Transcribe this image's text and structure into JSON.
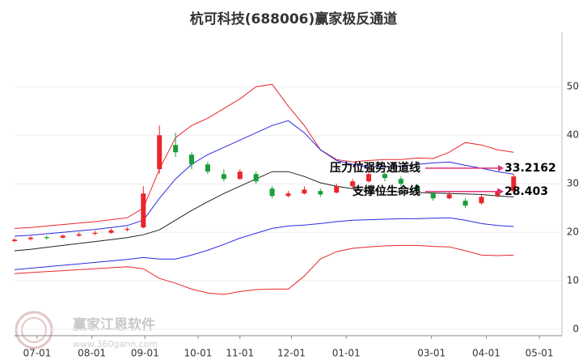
{
  "chart_data": {
    "type": "candlestick",
    "title": "杭可科技(688006)赢家极反通道",
    "watermark": "赢家江恩软件",
    "watermark_url": "www.360gann.com",
    "x": [
      0,
      10,
      20,
      30,
      40,
      50,
      60,
      70,
      80,
      90,
      100,
      110,
      120,
      130,
      140,
      150,
      160,
      170,
      180,
      190,
      200,
      210,
      220,
      230,
      240,
      250,
      260,
      270,
      280,
      290,
      300,
      310
    ],
    "xlim": [
      0,
      340
    ],
    "xticks": [
      {
        "value": 14,
        "label": "07-01"
      },
      {
        "value": 48,
        "label": "08-01"
      },
      {
        "value": 81,
        "label": "09-01"
      },
      {
        "value": 114,
        "label": "10-01"
      },
      {
        "value": 140,
        "label": "11-01"
      },
      {
        "value": 172,
        "label": "12-01"
      },
      {
        "value": 206,
        "label": "01-01"
      },
      {
        "value": 259,
        "label": "03-01"
      },
      {
        "value": 293,
        "label": "04-01"
      },
      {
        "value": 326,
        "label": "05-01"
      }
    ],
    "ylim": [
      -1.3,
      61.2
    ],
    "yticks": [
      0,
      10,
      20,
      30,
      40,
      50
    ],
    "grid": true,
    "up_color": "#e8262b",
    "down_color": "#1a9e3a",
    "candles": {
      "open": [
        18.2,
        18.6,
        19.0,
        18.9,
        19.3,
        19.7,
        19.9,
        20.5,
        21,
        33,
        38,
        36,
        34,
        32,
        31,
        32,
        29,
        27.5,
        28,
        28.5,
        28.2,
        29.5,
        30.5,
        32,
        31,
        29.5,
        28,
        27,
        26.5,
        26,
        27.5,
        28.5
      ],
      "close": [
        18.5,
        18.9,
        18.8,
        19.3,
        19.6,
        19.9,
        20.4,
        20.7,
        28,
        40,
        36.5,
        34,
        32.5,
        31,
        32.5,
        30.5,
        27.5,
        28,
        28.8,
        27.8,
        29.5,
        30.5,
        32,
        31.2,
        30,
        28.5,
        27,
        27.8,
        25.5,
        27.3,
        28.4,
        31.5
      ],
      "high": [
        18.8,
        19.2,
        19.3,
        19.6,
        20.0,
        20.3,
        20.8,
        21.1,
        29.5,
        42,
        40.5,
        36.5,
        34.5,
        33,
        33,
        32.5,
        29.5,
        28.5,
        29.5,
        29,
        30,
        31,
        33.5,
        32.5,
        31.5,
        30,
        28.5,
        28.3,
        27,
        27.8,
        29,
        32
      ],
      "low": [
        17.9,
        18.3,
        18.5,
        18.7,
        19.1,
        19.4,
        19.7,
        20.2,
        20.8,
        32,
        35.5,
        33,
        32,
        30.5,
        30.8,
        30,
        27,
        27.2,
        27.8,
        27.3,
        28,
        29,
        30.2,
        30.5,
        29.5,
        28,
        26.5,
        26.8,
        25,
        25.7,
        27.2,
        28.3
      ]
    },
    "series": [
      {
        "color": "#e8262b",
        "values": [
          20.8,
          21.0,
          21.3,
          21.6,
          21.9,
          22.2,
          22.6,
          23.0,
          25,
          33,
          39.5,
          42,
          43.5,
          45.5,
          47.5,
          50,
          50.5,
          46,
          42,
          37,
          35,
          34.5,
          34.8,
          35,
          35,
          35.3,
          35.2,
          36.5,
          38.5,
          38,
          37,
          36.5
        ]
      },
      {
        "color": "#2b2be0",
        "values": [
          19.2,
          19.4,
          19.7,
          20.0,
          20.3,
          20.6,
          21.0,
          21.4,
          22.5,
          27,
          31,
          34,
          36,
          37.5,
          39,
          40.5,
          42,
          43,
          40.5,
          37,
          34.8,
          34,
          33.5,
          33.5,
          33.6,
          34,
          34.3,
          34.5,
          33.8,
          33.2,
          32.5,
          32
        ]
      },
      {
        "color": "#222222",
        "values": [
          16.2,
          16.5,
          16.9,
          17.3,
          17.7,
          18.1,
          18.5,
          18.9,
          19.5,
          20.5,
          22.5,
          24.5,
          26.3,
          28,
          29.5,
          31,
          32.5,
          32.5,
          31.5,
          30.2,
          29.5,
          29,
          28.6,
          28.4,
          28.3,
          28.2,
          28.1,
          28,
          27.9,
          27.8,
          27.5,
          27.3
        ]
      },
      {
        "color": "#2b2be0",
        "values": [
          12.3,
          12.6,
          12.9,
          13.2,
          13.5,
          13.8,
          14.1,
          14.4,
          14.8,
          14.5,
          14.5,
          15.3,
          16.3,
          17.5,
          18.8,
          19.8,
          20.8,
          21.3,
          21.5,
          21.8,
          22.2,
          22.5,
          22.6,
          22.7,
          22.8,
          22.8,
          22.9,
          23,
          22.5,
          21.8,
          21.4,
          21.2
        ]
      },
      {
        "color": "#e8262b",
        "values": [
          11.5,
          11.7,
          11.9,
          12.1,
          12.3,
          12.5,
          12.7,
          12.9,
          12.5,
          10.5,
          9.5,
          8.3,
          7.5,
          7.2,
          7.8,
          8.2,
          8.3,
          8.3,
          11,
          14.5,
          16,
          16.7,
          17,
          17.2,
          17.3,
          17.3,
          17.1,
          17,
          16.2,
          15.3,
          15.2,
          15.3
        ]
      }
    ],
    "annotations": [
      {
        "text": "压力位强势通道线",
        "value": 33.2162
      },
      {
        "text": "支撑位生命线",
        "value": 28.403
      }
    ],
    "annotation_color": "#e0307a"
  }
}
